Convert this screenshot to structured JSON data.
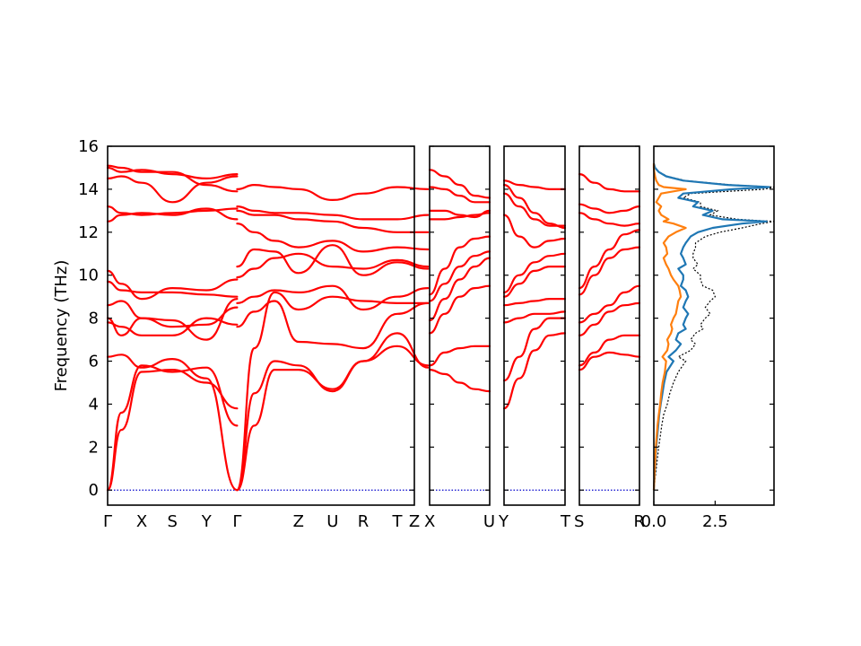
{
  "chart_data": {
    "type": "line",
    "ylabel": "Frequency (THz)",
    "ylim": [
      -0.7,
      16
    ],
    "yticks": [
      0,
      2,
      4,
      6,
      8,
      10,
      12,
      14,
      16
    ],
    "colors": {
      "bands": "#ff0000",
      "zero_line": "#0000cc",
      "dos_a": "#1f77b4",
      "dos_b": "#ff7f0e",
      "dos_total": "#000000"
    },
    "band_panels": [
      {
        "xlim": [
          0,
          9
        ],
        "ticks": [
          {
            "x": 0,
            "label": "Γ"
          },
          {
            "x": 1,
            "label": "X"
          },
          {
            "x": 1.9,
            "label": "S"
          },
          {
            "x": 2.9,
            "label": "Y"
          },
          {
            "x": 3.8,
            "label": "Γ"
          },
          {
            "x": 5.6,
            "label": "Z"
          },
          {
            "x": 6.6,
            "label": "U"
          },
          {
            "x": 7.5,
            "label": "R"
          },
          {
            "x": 8.5,
            "label": "T"
          },
          {
            "x": 9.4,
            "label": "Z"
          }
        ],
        "segments": [
          {
            "x": [
              0,
              0.4,
              1.0,
              1.9,
              2.9,
              3.8
            ],
            "bands": [
              [
                0,
                2.8,
                5.5,
                5.6,
                5.0,
                3.8
              ],
              [
                0,
                3.6,
                5.8,
                5.5,
                5.7,
                3.0
              ],
              [
                6.2,
                6.3,
                5.7,
                6.1,
                5.2,
                0
              ],
              [
                7.8,
                7.6,
                7.2,
                7.2,
                8.0,
                7.7
              ],
              [
                8.0,
                7.2,
                8.0,
                7.6,
                7.7,
                8.5
              ],
              [
                8.6,
                8.8,
                8.0,
                7.9,
                7.0,
                8.9
              ],
              [
                9.7,
                9.3,
                9.2,
                9.2,
                9.1,
                9.0
              ],
              [
                10.2,
                9.6,
                8.9,
                9.4,
                9.3,
                9.8
              ],
              [
                12.5,
                12.8,
                12.9,
                12.8,
                13.1,
                12.6
              ],
              [
                13.2,
                12.9,
                12.8,
                12.9,
                13.0,
                13.1
              ],
              [
                14.5,
                14.6,
                14.3,
                13.4,
                14.3,
                14.6
              ],
              [
                15.0,
                14.8,
                14.9,
                14.7,
                14.5,
                14.7
              ],
              [
                15.1,
                15.0,
                14.8,
                14.8,
                14.2,
                13.9
              ]
            ]
          },
          {
            "x": [
              3.8,
              4.3,
              4.9,
              5.6,
              6.6,
              7.5,
              8.5,
              9.4
            ],
            "bands": [
              [
                0,
                3.0,
                5.6,
                5.6,
                4.7,
                6.0,
                6.7,
                5.8
              ],
              [
                0,
                4.5,
                6.0,
                5.8,
                4.6,
                6.0,
                7.3,
                5.7
              ],
              [
                0,
                6.6,
                9.2,
                8.4,
                9.0,
                8.8,
                8.7,
                8.7
              ],
              [
                7.6,
                8.3,
                8.8,
                6.9,
                6.8,
                6.6,
                8.2,
                8.7
              ],
              [
                8.7,
                9.0,
                9.3,
                9.2,
                9.5,
                8.4,
                9.0,
                9.4
              ],
              [
                9.9,
                10.3,
                10.8,
                11.0,
                10.4,
                10.3,
                10.7,
                10.4
              ],
              [
                10.4,
                11.2,
                11.1,
                10.1,
                11.4,
                10.0,
                10.6,
                10.3
              ],
              [
                12.4,
                12.0,
                11.6,
                11.3,
                11.6,
                11.1,
                11.3,
                11.2
              ],
              [
                13.0,
                12.8,
                12.8,
                12.6,
                12.5,
                12.2,
                12.0,
                12.0
              ],
              [
                13.2,
                13.0,
                12.9,
                12.9,
                12.8,
                12.6,
                12.6,
                12.8
              ],
              [
                14.0,
                14.2,
                14.1,
                14.0,
                13.5,
                13.8,
                14.1,
                14.0
              ]
            ]
          }
        ]
      },
      {
        "xlim": [
          0,
          1
        ],
        "ticks": [
          {
            "x": 0,
            "label": "X"
          },
          {
            "x": 1,
            "label": "U"
          }
        ],
        "segments": [
          {
            "x": [
              0,
              0.25,
              0.5,
              0.75,
              1.0
            ],
            "bands": [
              [
                5.6,
                5.4,
                5.0,
                4.7,
                4.6
              ],
              [
                5.8,
                6.4,
                6.6,
                6.7,
                6.7
              ],
              [
                7.3,
                8.2,
                9.0,
                9.4,
                9.5
              ],
              [
                7.9,
                8.9,
                9.8,
                10.4,
                10.8
              ],
              [
                8.8,
                9.6,
                10.4,
                10.9,
                11.1
              ],
              [
                9.1,
                10.3,
                11.3,
                11.7,
                11.8
              ],
              [
                12.6,
                12.6,
                12.7,
                12.8,
                12.9
              ],
              [
                13.0,
                13.0,
                12.8,
                12.7,
                13.0
              ],
              [
                14.1,
                14.0,
                13.7,
                13.4,
                13.4
              ],
              [
                14.9,
                14.6,
                14.2,
                13.7,
                13.6
              ]
            ]
          }
        ]
      },
      {
        "xlim": [
          0,
          1
        ],
        "ticks": [
          {
            "x": 0,
            "label": "Y"
          },
          {
            "x": 1,
            "label": "T"
          }
        ],
        "segments": [
          {
            "x": [
              0,
              0.25,
              0.5,
              0.75,
              1.0
            ],
            "bands": [
              [
                3.8,
                5.2,
                6.5,
                7.2,
                7.3
              ],
              [
                5.1,
                6.2,
                7.5,
                8.0,
                8.0
              ],
              [
                7.8,
                8.0,
                8.2,
                8.2,
                8.3
              ],
              [
                8.6,
                8.7,
                8.8,
                8.9,
                8.9
              ],
              [
                9.0,
                9.6,
                10.2,
                10.4,
                10.4
              ],
              [
                9.2,
                10.0,
                10.6,
                10.9,
                11.0
              ],
              [
                12.8,
                11.8,
                11.3,
                11.6,
                11.7
              ],
              [
                13.8,
                13.2,
                12.6,
                12.3,
                12.3
              ],
              [
                14.2,
                13.6,
                12.9,
                12.4,
                12.2
              ],
              [
                14.4,
                14.2,
                14.1,
                14.0,
                14.0
              ]
            ]
          }
        ]
      },
      {
        "xlim": [
          0,
          1
        ],
        "ticks": [
          {
            "x": 0,
            "label": "S"
          },
          {
            "x": 1,
            "label": "R"
          }
        ],
        "segments": [
          {
            "x": [
              0,
              0.25,
              0.5,
              0.75,
              1.0
            ],
            "bands": [
              [
                5.6,
                6.2,
                6.4,
                6.3,
                6.2
              ],
              [
                5.8,
                6.4,
                7.0,
                7.2,
                7.2
              ],
              [
                7.2,
                7.7,
                8.3,
                8.6,
                8.7
              ],
              [
                7.8,
                8.2,
                8.6,
                9.2,
                9.5
              ],
              [
                9.1,
                10.0,
                10.8,
                11.2,
                11.3
              ],
              [
                9.4,
                10.4,
                11.2,
                11.9,
                12.1
              ],
              [
                12.9,
                12.6,
                12.4,
                12.3,
                12.4
              ],
              [
                13.3,
                13.1,
                12.9,
                13.0,
                13.2
              ],
              [
                14.7,
                14.3,
                14.0,
                13.9,
                13.9
              ]
            ]
          }
        ]
      }
    ],
    "dos_panel": {
      "xlim": [
        0,
        4.9
      ],
      "xticks": [
        {
          "x": 0,
          "label": "0.0"
        },
        {
          "x": 2.5,
          "label": "2.5"
        }
      ],
      "freq": [
        0,
        1,
        2,
        3,
        3.5,
        4,
        4.5,
        5,
        5.5,
        6,
        6.2,
        6.5,
        6.8,
        7,
        7.3,
        7.5,
        7.7,
        8,
        8.2,
        8.5,
        8.8,
        9,
        9.3,
        9.5,
        9.8,
        10,
        10.3,
        10.5,
        10.8,
        11,
        11.3,
        11.5,
        11.8,
        12,
        12.2,
        12.4,
        12.5,
        12.6,
        12.8,
        13,
        13.2,
        13.4,
        13.6,
        13.8,
        14,
        14.1,
        14.2,
        14.4,
        14.6,
        14.8,
        15,
        15.2
      ],
      "series": [
        {
          "values": [
            0,
            0.05,
            0.1,
            0.18,
            0.22,
            0.28,
            0.35,
            0.42,
            0.52,
            0.8,
            0.6,
            0.9,
            1.1,
            0.9,
            1.0,
            1.3,
            1.2,
            1.3,
            1.4,
            1.2,
            1.3,
            1.4,
            1.3,
            1.1,
            1.2,
            1.2,
            1.0,
            1.3,
            1.2,
            1.1,
            1.2,
            1.3,
            1.5,
            1.8,
            2.4,
            3.6,
            4.6,
            2.8,
            2.0,
            2.4,
            1.6,
            1.8,
            1.0,
            1.2,
            3.2,
            4.7,
            3.0,
            1.2,
            0.5,
            0.2,
            0.05,
            0
          ]
        },
        {
          "values": [
            0,
            0.04,
            0.08,
            0.15,
            0.2,
            0.26,
            0.3,
            0.36,
            0.45,
            0.5,
            0.35,
            0.55,
            0.6,
            0.55,
            0.7,
            0.75,
            0.7,
            0.8,
            0.9,
            0.95,
            1.0,
            1.1,
            1.05,
            1.0,
            0.8,
            0.7,
            0.6,
            0.5,
            0.4,
            0.55,
            0.5,
            0.4,
            0.6,
            0.9,
            1.3,
            0.8,
            0.4,
            0.6,
            0.3,
            0.2,
            0.3,
            0.1,
            0.2,
            0.3,
            1.3,
            0.4,
            0.2,
            0.1,
            0.05,
            0.02,
            0,
            0
          ]
        },
        {
          "values": [
            0,
            0.1,
            0.2,
            0.32,
            0.4,
            0.55,
            0.65,
            0.8,
            1.0,
            1.3,
            1.0,
            1.5,
            1.7,
            1.5,
            1.7,
            2.0,
            1.9,
            2.1,
            2.3,
            2.1,
            2.3,
            2.5,
            2.4,
            2.0,
            1.9,
            1.9,
            1.6,
            1.8,
            1.6,
            1.6,
            1.7,
            1.7,
            2.1,
            2.7,
            3.6,
            4.4,
            4.9,
            3.4,
            2.3,
            2.6,
            1.9,
            1.9,
            1.2,
            1.5,
            4.5,
            4.9,
            3.2,
            1.3,
            0.55,
            0.22,
            0.05,
            0
          ]
        }
      ]
    }
  }
}
